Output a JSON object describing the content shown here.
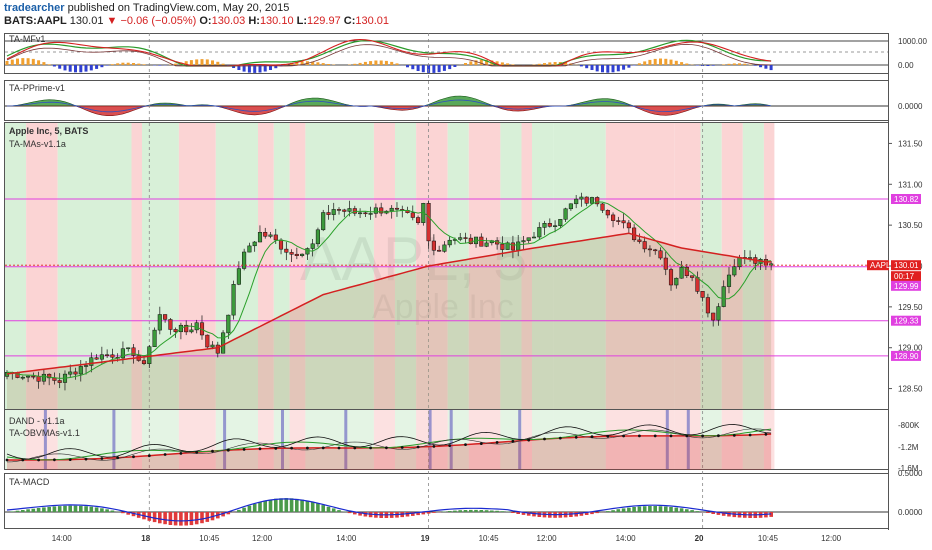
{
  "header": {
    "author": "tradearcher",
    "published": "published on TradingView.com, May 20, 2015",
    "symbol": "BATS:AAPL",
    "last": "130.01",
    "arrow": "▼",
    "change": "−0.06 (−0.05%)",
    "o_label": "O:",
    "o": "130.03",
    "h_label": "H:",
    "h": "130.10",
    "l_label": "L:",
    "l": "129.97",
    "c_label": "C:",
    "c": "130.01"
  },
  "panes": {
    "mfv": {
      "label": "TA-MFv1",
      "ticks": [
        "1000.00",
        "0.00"
      ]
    },
    "pprime": {
      "label": "TA-PPrime-v1",
      "ticks": [
        "0.0000"
      ]
    },
    "main": {
      "label1": "Apple Inc, 5, BATS",
      "label2": "TA-MAs-v1.1a",
      "watermark1": "AAPL, 5",
      "watermark2": "Apple Inc"
    },
    "obv": {
      "label1": "DAND - v1.1a",
      "label2": "TA-OBVMAs-v1.1",
      "ticks": [
        "-800K",
        "-1.2M",
        "-1.6M"
      ]
    },
    "macd": {
      "label": "TA-MACD",
      "ticks": [
        "0.5000",
        "0.0000"
      ]
    }
  },
  "price_tags": [
    {
      "text": "130.82",
      "color": "#e040e0"
    },
    {
      "text": "AAPL",
      "color": "#e02020"
    },
    {
      "text": "130.01",
      "color": "#e02020"
    },
    {
      "text": "00:17",
      "color": "#e02020"
    },
    {
      "text": "129.99",
      "color": "#e040e0"
    },
    {
      "text": "129.33",
      "color": "#e040e0"
    },
    {
      "text": "128.90",
      "color": "#e040e0"
    }
  ],
  "colors": {
    "bull": "#3c9a3c",
    "bear": "#d43030",
    "level": "#e040e0",
    "ema": "#d42020",
    "sma": "#2aa02a",
    "green_bg": "#d8f0d8",
    "red_bg": "#fbd4d4"
  },
  "chart_data": {
    "type": "candlestick",
    "x_ticks": [
      "14:00",
      "18",
      "10:45",
      "12:00",
      "14:00",
      "19",
      "10:45",
      "12:00",
      "14:00",
      "20",
      "10:45",
      "12:00"
    ],
    "y_ticks": [
      "131.50",
      "131.00",
      "130.50",
      "130.00",
      "129.50",
      "129.00",
      "128.50"
    ],
    "ylim": [
      128.25,
      131.75
    ],
    "levels": [
      130.82,
      129.99,
      129.33,
      128.9
    ],
    "last_price": 130.01,
    "close_path": [
      [
        0,
        128.7
      ],
      [
        10,
        128.6
      ],
      [
        17,
        128.9
      ],
      [
        24,
        128.95
      ],
      [
        26,
        128.75
      ],
      [
        27,
        129.05
      ],
      [
        29,
        129.4
      ],
      [
        31,
        129.25
      ],
      [
        34,
        129.2
      ],
      [
        36,
        129.3
      ],
      [
        38,
        129.05
      ],
      [
        40,
        128.95
      ],
      [
        42,
        129.45
      ],
      [
        44,
        130.0
      ],
      [
        46,
        130.25
      ],
      [
        48,
        130.4
      ],
      [
        50,
        130.35
      ],
      [
        54,
        130.15
      ],
      [
        58,
        130.25
      ],
      [
        60,
        130.6
      ],
      [
        62,
        130.7
      ],
      [
        66,
        130.65
      ],
      [
        72,
        130.7
      ],
      [
        76,
        130.6
      ],
      [
        78,
        130.5
      ],
      [
        79,
        130.75
      ],
      [
        80,
        130.3
      ],
      [
        82,
        130.2
      ],
      [
        84,
        130.35
      ],
      [
        88,
        130.3
      ],
      [
        92,
        130.3
      ],
      [
        96,
        130.2
      ],
      [
        100,
        130.4
      ],
      [
        104,
        130.55
      ],
      [
        108,
        130.8
      ],
      [
        112,
        130.8
      ],
      [
        116,
        130.55
      ],
      [
        120,
        130.3
      ],
      [
        124,
        130.15
      ],
      [
        126,
        129.8
      ],
      [
        128,
        129.95
      ],
      [
        130,
        129.9
      ],
      [
        132,
        129.6
      ],
      [
        134,
        129.35
      ],
      [
        136,
        129.75
      ],
      [
        138,
        130.05
      ],
      [
        140,
        130.1
      ],
      [
        142,
        130.05
      ],
      [
        144,
        130.01
      ]
    ],
    "ema": [
      [
        0,
        128.68
      ],
      [
        40,
        129.0
      ],
      [
        60,
        129.65
      ],
      [
        80,
        130.0
      ],
      [
        100,
        130.22
      ],
      [
        118,
        130.4
      ],
      [
        128,
        130.22
      ],
      [
        144,
        130.05
      ]
    ],
    "bg_spans": [
      [
        0,
        4,
        "g"
      ],
      [
        4,
        10,
        "r"
      ],
      [
        10,
        24,
        "g"
      ],
      [
        24,
        26,
        "r"
      ],
      [
        26,
        33,
        "g"
      ],
      [
        33,
        40,
        "r"
      ],
      [
        40,
        48,
        "g"
      ],
      [
        48,
        51,
        "r"
      ],
      [
        51,
        54,
        "g"
      ],
      [
        54,
        57,
        "r"
      ],
      [
        57,
        70,
        "g"
      ],
      [
        70,
        74,
        "r"
      ],
      [
        74,
        78,
        "g"
      ],
      [
        78,
        84,
        "r"
      ],
      [
        84,
        88,
        "g"
      ],
      [
        88,
        94,
        "r"
      ],
      [
        94,
        98,
        "g"
      ],
      [
        98,
        100,
        "r"
      ],
      [
        100,
        104,
        "g"
      ],
      [
        104,
        114,
        "g"
      ],
      [
        114,
        127,
        "r"
      ],
      [
        127,
        132,
        "r"
      ],
      [
        132,
        136,
        "g"
      ],
      [
        136,
        140,
        "r"
      ],
      [
        140,
        144,
        "g"
      ],
      [
        144,
        146,
        "r"
      ]
    ]
  }
}
